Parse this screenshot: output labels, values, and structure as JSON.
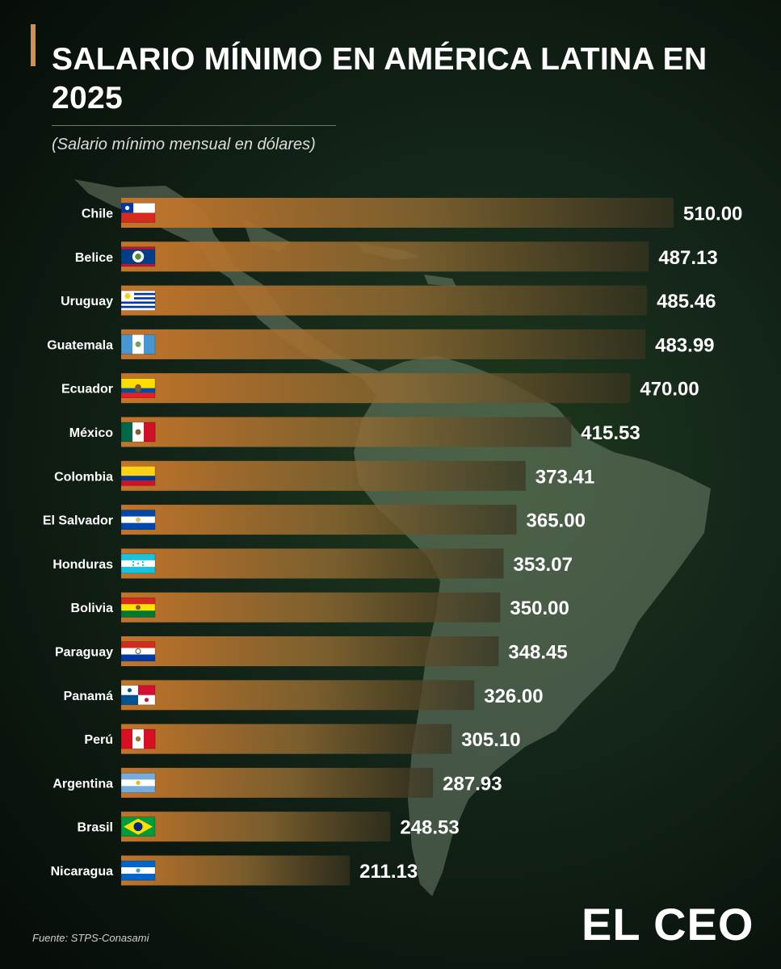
{
  "header": {
    "title": "SALARIO MÍNIMO EN AMÉRICA LATINA EN 2025",
    "subtitle": "(Salario mínimo mensual en dólares)"
  },
  "footer": {
    "source": "Fuente: STPS-Conasami",
    "logo": "EL CEO"
  },
  "colors": {
    "bar_start": "#c7762a",
    "bar_end": "#3a3420",
    "background": "#0f1f12",
    "accent": "#c9925a"
  },
  "chart_data": {
    "type": "bar",
    "orientation": "horizontal",
    "title": "SALARIO MÍNIMO EN AMÉRICA LATINA EN 2025",
    "subtitle": "(Salario mínimo mensual en dólares)",
    "categories": [
      "Chile",
      "Belice",
      "Uruguay",
      "Guatemala",
      "Ecuador",
      "México",
      "Colombia",
      "El Salvador",
      "Honduras",
      "Bolivia",
      "Paraguay",
      "Panamá",
      "Perú",
      "Argentina",
      "Brasil",
      "Nicaragua"
    ],
    "values": [
      510.0,
      487.13,
      485.46,
      483.99,
      470.0,
      415.53,
      373.41,
      365.0,
      353.07,
      350.0,
      348.45,
      326.0,
      305.1,
      287.93,
      248.53,
      211.13
    ],
    "value_labels": [
      "510.00",
      "487.13",
      "485.46",
      "483.99",
      "470.00",
      "415.53",
      "373.41",
      "365.00",
      "353.07",
      "350.00",
      "348.45",
      "326.00",
      "305.10",
      "287.93",
      "248.53",
      "211.13"
    ],
    "flags": [
      "chile-flag-icon",
      "belize-flag-icon",
      "uruguay-flag-icon",
      "guatemala-flag-icon",
      "ecuador-flag-icon",
      "mexico-flag-icon",
      "colombia-flag-icon",
      "el-salvador-flag-icon",
      "honduras-flag-icon",
      "bolivia-flag-icon",
      "paraguay-flag-icon",
      "panama-flag-icon",
      "peru-flag-icon",
      "argentina-flag-icon",
      "brazil-flag-icon",
      "nicaragua-flag-icon"
    ],
    "xlim": [
      0,
      510
    ],
    "grid": false,
    "legend": "none"
  }
}
